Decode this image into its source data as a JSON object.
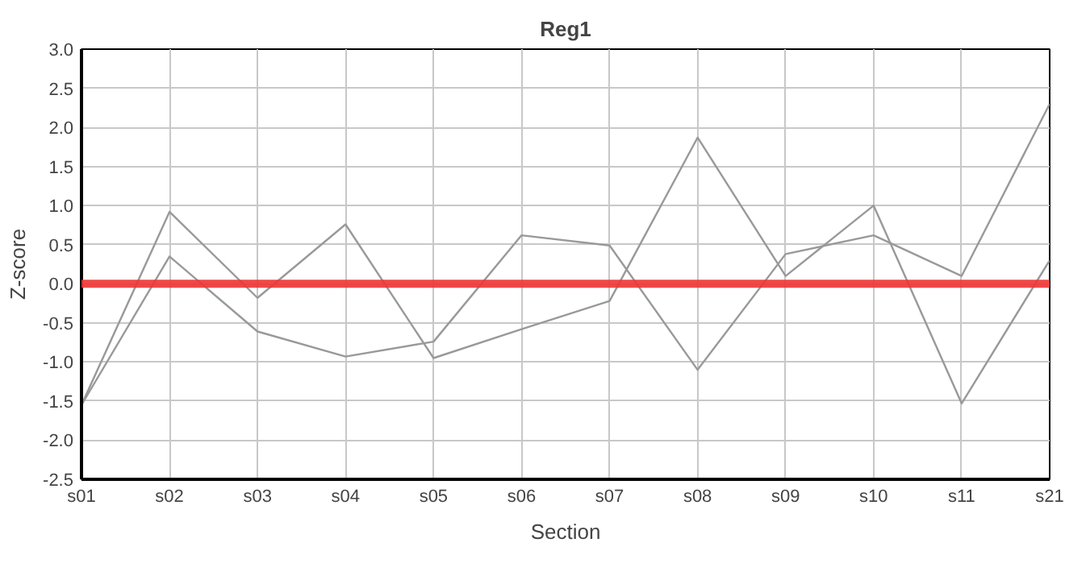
{
  "chart_data": {
    "type": "line",
    "title": "Reg1",
    "xlabel": "Section",
    "ylabel": "Z-score",
    "categories": [
      "s01",
      "s02",
      "s03",
      "s04",
      "s05",
      "s06",
      "s07",
      "s08",
      "s09",
      "s10",
      "s11",
      "s21"
    ],
    "series": [
      {
        "color": "#999999",
        "values": [
          -1.55,
          0.92,
          -0.18,
          0.76,
          -0.95,
          -0.58,
          -0.22,
          1.87,
          0.1,
          1.0,
          -1.53,
          0.3
        ]
      },
      {
        "color": "#999999",
        "values": [
          -1.55,
          0.35,
          -0.61,
          -0.93,
          -0.74,
          0.62,
          0.49,
          -1.1,
          0.38,
          0.62,
          0.1,
          2.3
        ]
      }
    ],
    "ylim": [
      -2.5,
      3.0
    ],
    "yticks": [
      {
        "value": -2.5,
        "label": "-2.5"
      },
      {
        "value": -2.0,
        "label": "-2.0"
      },
      {
        "value": -1.5,
        "label": "-1.5"
      },
      {
        "value": -1.0,
        "label": "-1.0"
      },
      {
        "value": -0.5,
        "label": "-0.5"
      },
      {
        "value": 0,
        "label": "0.0"
      },
      {
        "value": 0.5,
        "label": "0.5"
      },
      {
        "value": 1.0,
        "label": "1.0"
      },
      {
        "value": 1.5,
        "label": "1.5"
      },
      {
        "value": 2.0,
        "label": "2.0"
      },
      {
        "value": 2.5,
        "label": "2.5"
      },
      {
        "value": 3.0,
        "label": "3.0"
      }
    ],
    "ref_lines": [
      {
        "axis": "y",
        "value": 0,
        "color": "#ee3333"
      }
    ],
    "grid": true,
    "marker": "none",
    "line_style": "solid"
  }
}
